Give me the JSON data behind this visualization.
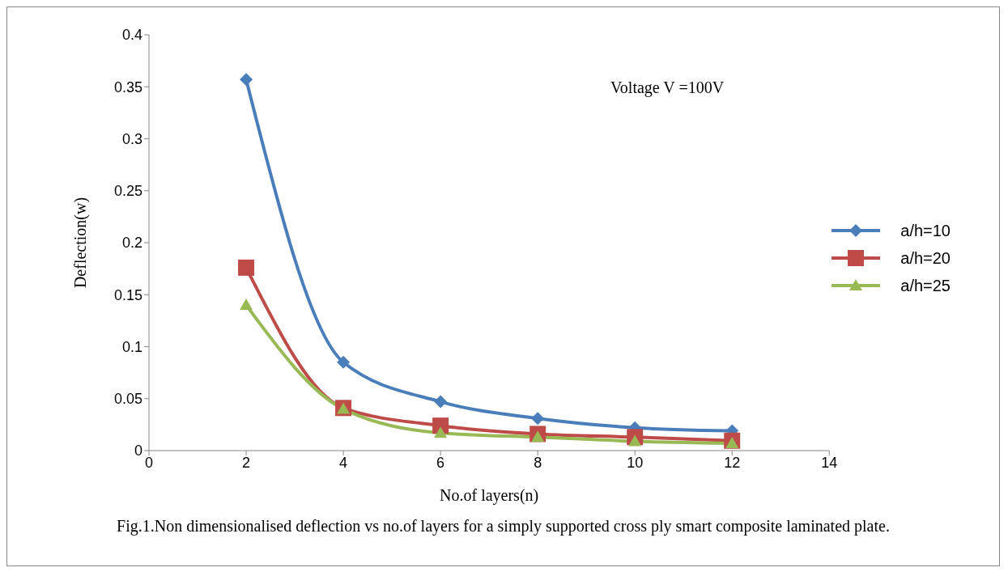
{
  "chart_data": {
    "type": "line",
    "xlabel": "No.of  layers(n)",
    "ylabel": "Deflection(w)",
    "x": [
      2,
      4,
      6,
      8,
      10,
      12
    ],
    "series": [
      {
        "name": "a/h=10",
        "color": "#4a7ebb",
        "marker": "diamond",
        "values": [
          0.357,
          0.085,
          0.047,
          0.031,
          0.022,
          0.019
        ]
      },
      {
        "name": "a/h=20",
        "color": "#be4b48",
        "marker": "square",
        "values": [
          0.176,
          0.041,
          0.024,
          0.016,
          0.013,
          0.0095
        ]
      },
      {
        "name": "a/h=25",
        "color": "#98b954",
        "marker": "triangle",
        "values": [
          0.14,
          0.04,
          0.017,
          0.013,
          0.009,
          0.007
        ]
      }
    ],
    "xlim": [
      0,
      14
    ],
    "xticks": [
      0,
      2,
      4,
      6,
      8,
      10,
      12,
      14
    ],
    "ylim": [
      0,
      0.4
    ],
    "yticks": [
      0,
      0.05,
      0.1,
      0.15,
      0.2,
      0.25,
      0.3,
      0.35,
      0.4
    ],
    "grid": false,
    "legend": "right",
    "line_style": "solid",
    "annotations": [
      "Voltage V =100V",
      "Fig.1.Non dimensionalised deflection vs no.of  layers for a simply supported cross ply smart composite laminated plate."
    ]
  }
}
